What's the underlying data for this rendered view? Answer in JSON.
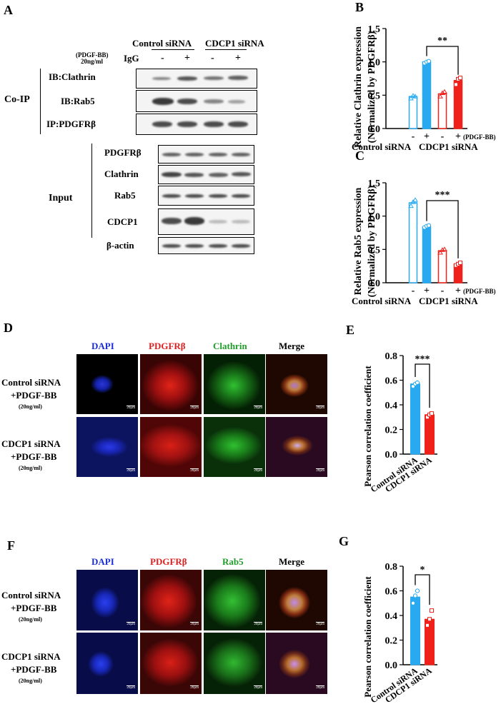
{
  "panels": {
    "A": "A",
    "B": "B",
    "C": "C",
    "D": "D",
    "E": "E",
    "F": "F",
    "G": "G"
  },
  "panelA": {
    "group_control": "Control siRNA",
    "group_cdcp1": "CDCP1 siRNA",
    "pdgf_label": "(PDGF-BB)",
    "pdgf_conc": "20ng/ml",
    "igg_label": "IgG",
    "signs": [
      "-",
      "+",
      "-",
      "+",
      "-",
      "+"
    ],
    "coip_label": "Co-IP",
    "input_label": "Input",
    "coip_rows": [
      "IB:Clathrin",
      "IB:Rab5",
      "IP:PDGFRβ"
    ],
    "input_rows": [
      "PDGFRβ",
      "Clathrin",
      "Rab5",
      "CDCP1",
      "β-actin"
    ]
  },
  "micro": {
    "channels": [
      "DAPI",
      "PDGFRβ",
      "Clathrin",
      "Merge"
    ],
    "channels_F": [
      "DAPI",
      "PDGFRβ",
      "Rab5",
      "Merge"
    ],
    "row1": [
      "Control siRNA",
      "+PDGF-BB",
      "(20ng/ml)"
    ],
    "row2": [
      "CDCP1 siRNA",
      "+PDGF-BB",
      "(20ng/ml)"
    ],
    "scalebar": "20μm"
  },
  "chart_data": [
    {
      "panel": "B",
      "type": "bar",
      "ylabel": "Relative Clathrin expression (Normalized by PDGFRβ)",
      "ylim": [
        0,
        1.5
      ],
      "yticks": [
        "0.0",
        "0.5",
        "1.0",
        "1.5"
      ],
      "ytick_values": [
        0,
        0.5,
        1.0,
        1.5
      ],
      "signs": [
        "-",
        "+",
        "-",
        "+"
      ],
      "treatment": "(PDGF-BB)",
      "groups": [
        "Control siRNA",
        "CDCP1 siRNA"
      ],
      "values": [
        0.48,
        1.0,
        0.52,
        0.72
      ],
      "points": [
        [
          0.45,
          0.49,
          0.48
        ],
        [
          0.98,
          1.0,
          1.01
        ],
        [
          0.48,
          0.53,
          0.55
        ],
        [
          0.66,
          0.74,
          0.76
        ]
      ],
      "significance": "**",
      "colors": [
        "#29aaf0",
        "#29aaf0",
        "#f0201a",
        "#f0201a"
      ]
    },
    {
      "panel": "C",
      "type": "bar",
      "ylabel": "Relative Rab5 expression (Normalized by PDGFRβ)",
      "ylim": [
        0,
        1.5
      ],
      "yticks": [
        "0.0",
        "0.5",
        "1.0",
        "1.5"
      ],
      "ytick_values": [
        0,
        0.5,
        1.0,
        1.5
      ],
      "signs": [
        "-",
        "+",
        "-",
        "+"
      ],
      "treatment": "(PDGF-BB)",
      "groups": [
        "Control siRNA",
        "CDCP1 siRNA"
      ],
      "values": [
        1.2,
        0.84,
        0.48,
        0.28
      ],
      "points": [
        [
          1.15,
          1.21,
          1.24
        ],
        [
          0.83,
          0.85,
          0.86
        ],
        [
          0.45,
          0.49,
          0.5
        ],
        [
          0.26,
          0.28,
          0.3
        ]
      ],
      "significance": "***",
      "colors": [
        "#29aaf0",
        "#29aaf0",
        "#f0201a",
        "#f0201a"
      ]
    },
    {
      "panel": "E",
      "type": "bar",
      "ylabel": "Pearson correlation coefficient",
      "ylim": [
        0,
        0.8
      ],
      "yticks": [
        "0.0",
        "0.2",
        "0.4",
        "0.6",
        "0.8"
      ],
      "ytick_values": [
        0,
        0.2,
        0.4,
        0.6,
        0.8
      ],
      "categories": [
        "Control siRNA",
        "CDCP1 siRNA"
      ],
      "values": [
        0.57,
        0.32
      ],
      "points": [
        [
          0.55,
          0.57,
          0.58
        ],
        [
          0.3,
          0.32,
          0.33
        ]
      ],
      "significance": "***",
      "colors": [
        "#29aaf0",
        "#f0201a"
      ]
    },
    {
      "panel": "G",
      "type": "bar",
      "ylabel": "Pearson correlation coefficient",
      "ylim": [
        0,
        0.8
      ],
      "yticks": [
        "0.0",
        "0.2",
        "0.4",
        "0.6",
        "0.8"
      ],
      "ytick_values": [
        0,
        0.2,
        0.4,
        0.6,
        0.8
      ],
      "categories": [
        "Control siRNA",
        "CDCP1 siRNA"
      ],
      "values": [
        0.55,
        0.37
      ],
      "points": [
        [
          0.5,
          0.56,
          0.6
        ],
        [
          0.32,
          0.37,
          0.44
        ]
      ],
      "significance": "*",
      "colors": [
        "#29aaf0",
        "#f0201a"
      ]
    }
  ]
}
